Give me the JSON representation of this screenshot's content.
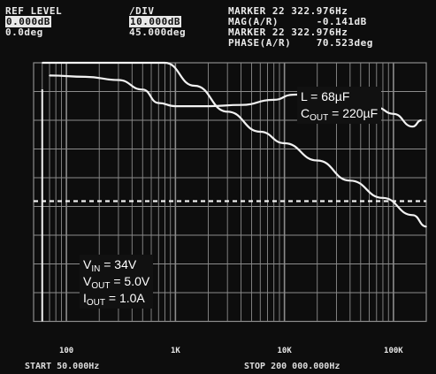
{
  "header": {
    "ref_level_label": "REF LEVEL",
    "ref_mag": "0.000dB",
    "ref_phase": "0.0deg",
    "div_label": "/DIV",
    "div_mag": "10.000dB",
    "div_phase": "45.000deg",
    "marker_line1": "MARKER 22 322.976Hz",
    "mag_line": "MAG(A/R)      -0.141dB",
    "marker_line2": "MARKER 22 322.976Hz",
    "phase_line": "PHASE(A/R)    70.523deg"
  },
  "footer": {
    "start": "START 50.000Hz",
    "stop": "STOP 200 000.000Hz"
  },
  "annotations": {
    "inductance": "L = 68µF",
    "cout_prefix": "C",
    "cout_sub": "OUT",
    "cout_value": " = 220µF",
    "vin_prefix": "V",
    "vin_sub": "IN",
    "vin_value": " = 34V",
    "vout_prefix": "V",
    "vout_sub": "OUT",
    "vout_value": " = 5.0V",
    "iout_prefix": "I",
    "iout_sub": "OUT",
    "iout_value": " = 1.0A"
  },
  "colors": {
    "screen": "#0d0d0d",
    "grid": "#8c8c8c",
    "trace": "#f2f2f2"
  },
  "chart_data": {
    "type": "line",
    "x_scale": "log",
    "xlim": [
      50,
      200000
    ],
    "x_ticks": [
      {
        "value": 100,
        "label": "100"
      },
      {
        "value": 1000,
        "label": "1K"
      },
      {
        "value": 10000,
        "label": "10K"
      },
      {
        "value": 100000,
        "label": "100K"
      }
    ],
    "grid": true,
    "series": [
      {
        "trace": "magnitude",
        "unit": "dB",
        "x": [
          60,
          200,
          500,
          800,
          1500,
          3000,
          6000,
          10000,
          20000,
          40000,
          80000,
          150000,
          200000
        ],
        "values": [
          0,
          0,
          0,
          0,
          -8,
          -17,
          -24,
          -28,
          -34,
          -41,
          -47,
          -53,
          -57
        ]
      },
      {
        "trace": "phase",
        "unit": "deg",
        "x": [
          70,
          150,
          300,
          500,
          700,
          1000,
          2000,
          4000,
          8000,
          12000,
          20000,
          40000,
          70000,
          100000,
          150000,
          180000
        ],
        "values": [
          70,
          68,
          63,
          48,
          27,
          22,
          22,
          24,
          32,
          40,
          42,
          35,
          20,
          10,
          -10,
          0
        ]
      }
    ]
  }
}
